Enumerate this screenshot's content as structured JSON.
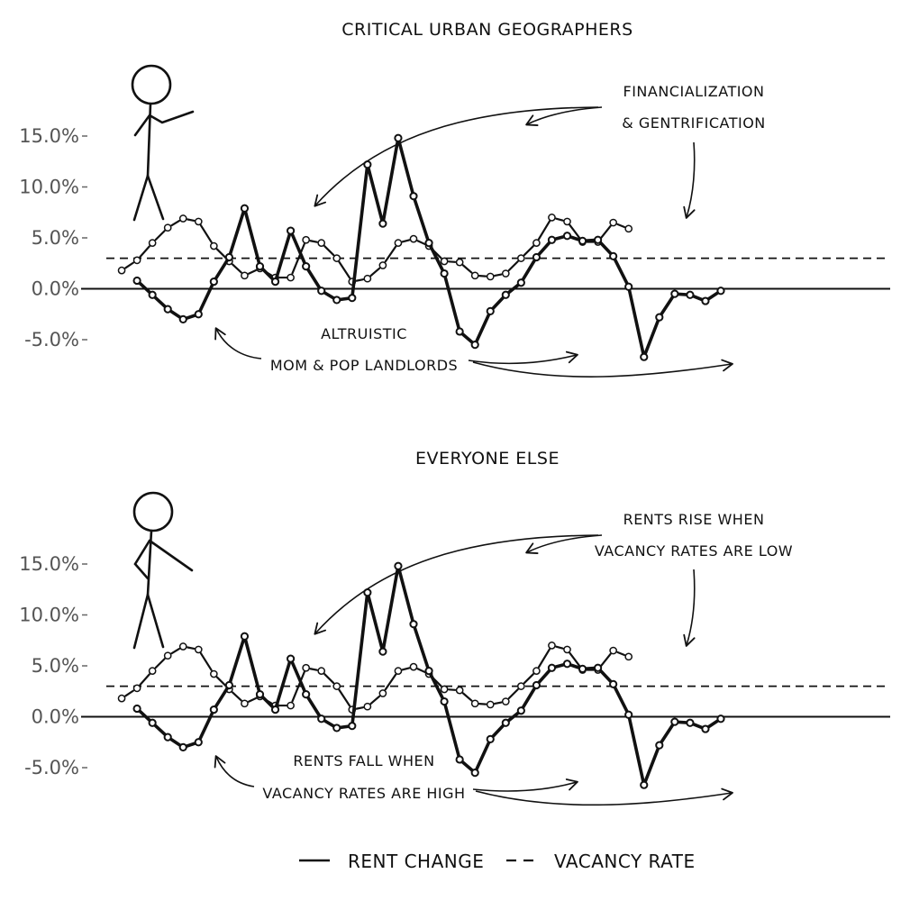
{
  "legend": {
    "rent_label": "Rent change",
    "vacancy_label": "Vacancy rate"
  },
  "chart_data": [
    {
      "type": "line",
      "title": "Critical urban geographers",
      "yticks": [
        "15.0%",
        "10.0%",
        "5.0%",
        "0.0%",
        "-5.0%"
      ],
      "ylim": [
        -7.5,
        17.5
      ],
      "grid": false,
      "reference_line": 3.0,
      "series": [
        {
          "key": "rent",
          "values": [
            0.8,
            -0.6,
            -2.0,
            -3.0,
            -2.5,
            0.7,
            3.1,
            7.9,
            2.2,
            0.7,
            5.7,
            2.2,
            -0.2,
            -1.1,
            -0.9,
            12.2,
            6.4,
            14.8,
            9.1,
            4.5,
            1.5,
            -4.2,
            -5.5,
            -2.2,
            -0.6,
            0.6,
            3.1,
            4.8,
            5.2,
            4.7,
            4.8,
            3.2,
            0.2,
            -6.7,
            -2.8,
            -0.5,
            -0.6,
            -1.2,
            -0.2
          ],
          "x_index": [
            2,
            3,
            4,
            5,
            6,
            7,
            8,
            9,
            10,
            11,
            12,
            13,
            14,
            15,
            16,
            17,
            18,
            19,
            20,
            21,
            22,
            23,
            24,
            25,
            26,
            27,
            28,
            29,
            30,
            31,
            32,
            33,
            34,
            35,
            36,
            37,
            38,
            39,
            40
          ]
        },
        {
          "key": "vacancy",
          "values": [
            1.8,
            2.8,
            4.5,
            6.0,
            6.9,
            6.6,
            4.2,
            2.7,
            1.3,
            2.0,
            1.1,
            1.1,
            4.8,
            4.5,
            3.0,
            0.7,
            1.0,
            2.3,
            4.5,
            4.9,
            4.2,
            2.7,
            2.6,
            1.3,
            1.2,
            1.5,
            3.0,
            4.5,
            7.0,
            6.6,
            4.6,
            4.6,
            6.5,
            5.9
          ],
          "x_index": [
            1,
            2,
            3,
            4,
            5,
            6,
            7,
            8,
            9,
            10,
            11,
            12,
            13,
            14,
            15,
            16,
            17,
            18,
            19,
            20,
            21,
            22,
            23,
            24,
            25,
            26,
            27,
            28,
            29,
            30,
            31,
            32,
            33,
            34
          ]
        }
      ],
      "annotations": {
        "top_1": "Financialization",
        "top_2": "& gentrification",
        "bottom_1": "Altruistic",
        "bottom_2": "mom & pop landlords"
      }
    },
    {
      "type": "line",
      "title": "Everyone else",
      "yticks": [
        "15.0%",
        "10.0%",
        "5.0%",
        "0.0%",
        "-5.0%"
      ],
      "ylim": [
        -7.5,
        17.5
      ],
      "grid": false,
      "reference_line": 3.0,
      "series": [
        {
          "key": "rent",
          "values": [
            0.8,
            -0.6,
            -2.0,
            -3.0,
            -2.5,
            0.7,
            3.1,
            7.9,
            2.2,
            0.7,
            5.7,
            2.2,
            -0.2,
            -1.1,
            -0.9,
            12.2,
            6.4,
            14.8,
            9.1,
            4.5,
            1.5,
            -4.2,
            -5.5,
            -2.2,
            -0.6,
            0.6,
            3.1,
            4.8,
            5.2,
            4.7,
            4.8,
            3.2,
            0.2,
            -6.7,
            -2.8,
            -0.5,
            -0.6,
            -1.2,
            -0.2
          ]
        },
        {
          "key": "vacancy",
          "values": [
            1.8,
            2.8,
            4.5,
            6.0,
            6.9,
            6.6,
            4.2,
            2.7,
            1.3,
            2.0,
            1.1,
            1.1,
            4.8,
            4.5,
            3.0,
            0.7,
            1.0,
            2.3,
            4.5,
            4.9,
            4.2,
            2.7,
            2.6,
            1.3,
            1.2,
            1.5,
            3.0,
            4.5,
            7.0,
            6.6,
            4.6,
            4.6,
            6.5,
            5.9
          ]
        }
      ],
      "annotations": {
        "top_1": "Rents rise when",
        "top_2": "vacancy rates are low",
        "bottom_1": "Rents fall when",
        "bottom_2": "vacancy rates are high"
      }
    }
  ]
}
